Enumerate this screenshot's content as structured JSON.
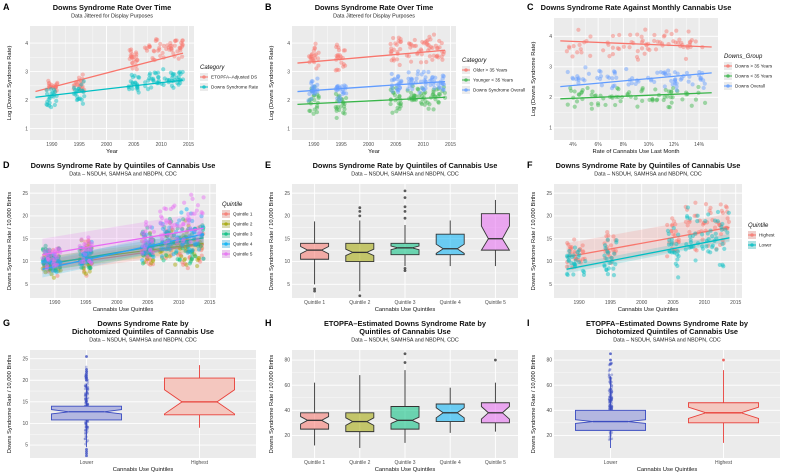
{
  "colors": {
    "panel_bg": "#ebebeb",
    "grid": "#ffffff",
    "red": "#f8766d",
    "teal": "#00bfc4",
    "green": "#7cae00",
    "green2": "#39b54a",
    "blue": "#619cff",
    "purple": "#c77cff",
    "q1": "#f8766d",
    "q2": "#a3a500",
    "q3": "#00bf7d",
    "q4": "#00b0f6",
    "q5": "#e76bf3",
    "box_blue_fill": "#b3b7e0",
    "box_blue_line": "#3b4cc0",
    "box_red_fill": "#f4c7bf",
    "box_red_line": "#e8403a"
  },
  "chart_data": [
    {
      "id": "A",
      "type": "scatter",
      "letter": "A",
      "title": "Downs Syndrome Rate Over Time",
      "subtitle": "Data Jittered for Display Purposes",
      "xlabel": "Year",
      "ylabel": "Log (Downs Syndrome Rate)",
      "xlim": [
        1986,
        2016
      ],
      "ylim": [
        0.6,
        4.6
      ],
      "xticks": [
        1990,
        1995,
        2000,
        2005,
        2010,
        2015
      ],
      "yticks": [
        1,
        2,
        3,
        4
      ],
      "legend_title": "Category",
      "series": [
        {
          "name": "ETOPFA–Adjusted DS",
          "color": "red",
          "clusters": [
            [
              1989,
              1991,
              2.2,
              2.8
            ],
            [
              1994,
              1996,
              2.0,
              3.0
            ],
            [
              2004,
              2006,
              3.0,
              4.0
            ],
            [
              2007,
              2014,
              3.3,
              4.3
            ]
          ],
          "line": [
            [
              1987,
              2.3
            ],
            [
              2014,
              3.65
            ]
          ]
        },
        {
          "name": "Downs Syndrome Rate",
          "color": "teal",
          "clusters": [
            [
              1989,
              1991,
              1.7,
              2.6
            ],
            [
              1994,
              1996,
              1.7,
              2.7
            ],
            [
              2004,
              2006,
              2.2,
              3.0
            ],
            [
              2007,
              2014,
              2.3,
              3.1
            ]
          ],
          "line": [
            [
              1987,
              2.1
            ],
            [
              2014,
              2.7
            ]
          ]
        }
      ]
    },
    {
      "id": "B",
      "type": "scatter",
      "letter": "B",
      "title": "Downs Syndrome Rate Over Time",
      "subtitle": "Data Jittered for Display Purposes",
      "xlabel": "Year",
      "ylabel": "Log (Downs Syndrome Rate)",
      "xlim": [
        1986,
        2016
      ],
      "ylim": [
        0.6,
        4.6
      ],
      "xticks": [
        1990,
        1995,
        2000,
        2005,
        2010,
        2015
      ],
      "yticks": [
        1,
        2,
        3,
        4
      ],
      "legend_title": "Category",
      "series": [
        {
          "name": "Older > 35 Years",
          "color": "red",
          "clusters": [
            [
              1989,
              1991,
              3.0,
              4.2
            ],
            [
              1994,
              1996,
              3.0,
              4.1
            ],
            [
              2004,
              2006,
              3.2,
              4.3
            ],
            [
              2007,
              2014,
              3.2,
              4.4
            ]
          ],
          "line": [
            [
              1987,
              3.3
            ],
            [
              2014,
              3.75
            ]
          ]
        },
        {
          "name": "Younger < 35 Years",
          "color": "green2",
          "clusters": [
            [
              1989,
              1991,
              1.2,
              2.6
            ],
            [
              1994,
              1996,
              1.3,
              2.5
            ],
            [
              2004,
              2006,
              1.5,
              2.6
            ],
            [
              2007,
              2014,
              1.6,
              2.6
            ]
          ],
          "line": [
            [
              1987,
              1.85
            ],
            [
              2014,
              2.1
            ]
          ]
        },
        {
          "name": "Downs Syndrome Overall",
          "color": "blue",
          "clusters": [
            [
              1989,
              1991,
              1.9,
              2.8
            ],
            [
              1994,
              1996,
              1.9,
              2.8
            ],
            [
              2004,
              2006,
              2.2,
              3.0
            ],
            [
              2007,
              2014,
              2.2,
              3.1
            ]
          ],
          "line": [
            [
              1987,
              2.3
            ],
            [
              2014,
              2.65
            ]
          ]
        }
      ]
    },
    {
      "id": "C",
      "type": "scatter",
      "letter": "C",
      "title": "Downs Syndrome Rate Against Monthly Cannabis Use",
      "subtitle": "",
      "xlabel": "Rate of Cannabis Use Last Month",
      "ylabel": "Log (Downs Syndrome Rate)",
      "xlim": [
        2.5,
        15.5
      ],
      "ylim": [
        0.6,
        4.6
      ],
      "xticks": [
        4,
        6,
        8,
        10,
        12,
        14
      ],
      "xtick_labels": [
        "4%",
        "6%",
        "8%",
        "10%",
        "12%",
        "14%"
      ],
      "yticks": [
        1,
        2,
        3,
        4
      ],
      "legend_title": "Downs_Group",
      "series": [
        {
          "name": "Downs > 35 Years",
          "color": "red",
          "clusters": [
            [
              3.5,
              14.5,
              3.2,
              4.3
            ]
          ],
          "line": [
            [
              3,
              3.85
            ],
            [
              15,
              3.65
            ]
          ]
        },
        {
          "name": "Downs < 35 Years",
          "color": "green2",
          "clusters": [
            [
              3.5,
              14.5,
              1.6,
              2.4
            ]
          ],
          "line": [
            [
              3,
              1.95
            ],
            [
              15,
              2.15
            ]
          ]
        },
        {
          "name": "Downs Overall",
          "color": "blue",
          "clusters": [
            [
              3.5,
              14.5,
              2.2,
              3.0
            ]
          ],
          "line": [
            [
              3,
              2.35
            ],
            [
              15,
              2.8
            ]
          ]
        }
      ]
    },
    {
      "id": "D",
      "type": "scatter",
      "letter": "D",
      "title": "Downs Syndrome Rate by Quintiles of Cannabis Use",
      "subtitle": "Data – NSDUH, SAMHSA and NBDPN, CDC",
      "xlabel": "Cannabis Use Quintiles",
      "ylabel": "Downs Syndrome Rate / 10,000 Births",
      "xlim": [
        1986,
        2016
      ],
      "ylim": [
        2,
        27
      ],
      "xticks": [
        1990,
        1995,
        2000,
        2005,
        2010,
        2015
      ],
      "yticks": [
        5,
        10,
        15,
        20,
        25
      ],
      "legend_title": "Quintile",
      "series": [
        {
          "name": "Quintile 1",
          "color": "q1",
          "clusters": [
            [
              1988,
              1991,
              6,
              14
            ],
            [
              1994,
              1996,
              6,
              15
            ],
            [
              2004,
              2006,
              7,
              16
            ],
            [
              2007,
              2014,
              8,
              18
            ]
          ],
          "line": [
            [
              1988,
              8.8
            ],
            [
              2014,
              13.8
            ]
          ],
          "band": 1.5
        },
        {
          "name": "Quintile 2",
          "color": "q2",
          "clusters": [
            [
              1988,
              1991,
              6,
              13
            ],
            [
              1994,
              1996,
              6,
              16
            ],
            [
              2004,
              2006,
              8,
              17
            ],
            [
              2007,
              2014,
              8,
              20
            ]
          ],
          "line": [
            [
              1988,
              9.5
            ],
            [
              2014,
              14.0
            ]
          ],
          "band": 1.5
        },
        {
          "name": "Quintile 3",
          "color": "q3",
          "clusters": [
            [
              1988,
              1991,
              7,
              14
            ],
            [
              1994,
              1996,
              7,
              15
            ],
            [
              2004,
              2006,
              9,
              18
            ],
            [
              2007,
              2014,
              9,
              20
            ]
          ],
          "line": [
            [
              1988,
              9.2
            ],
            [
              2014,
              15.2
            ]
          ],
          "band": 1.5
        },
        {
          "name": "Quintile 4",
          "color": "q4",
          "clusters": [
            [
              1988,
              1991,
              7,
              13
            ],
            [
              1994,
              1996,
              8,
              15
            ],
            [
              2004,
              2006,
              9,
              18
            ],
            [
              2007,
              2014,
              10,
              22
            ]
          ],
          "line": [
            [
              1988,
              8.3
            ],
            [
              2014,
              16.0
            ]
          ],
          "band": 1.8
        },
        {
          "name": "Quintile 5",
          "color": "q5",
          "clusters": [
            [
              1988,
              1991,
              8,
              14
            ],
            [
              1994,
              1996,
              9,
              16
            ],
            [
              2004,
              2006,
              10,
              20
            ],
            [
              2007,
              2014,
              11,
              26
            ]
          ],
          "line": [
            [
              1988,
              11.5
            ],
            [
              2014,
              17.3
            ]
          ],
          "band": 3.5
        }
      ]
    },
    {
      "id": "E",
      "type": "boxplot",
      "letter": "E",
      "title": "Downs Syndrome Rate by Quintiles of Cannabis Use",
      "subtitle": "Data – NSDUH, SAMHSA and NBDPN, CDC",
      "xlabel": "Cannabis Use Quintiles",
      "ylabel": "Downs Syndrome Rate / 10,000 Births",
      "ylim": [
        2,
        27
      ],
      "yticks": [
        5,
        10,
        15,
        20,
        25
      ],
      "categories": [
        "Quintile 1",
        "Quintile 2",
        "Quintile 3",
        "Quintile 4",
        "Quintile 5"
      ],
      "boxes": [
        {
          "color": "q1",
          "q1": 10.5,
          "median": 12.5,
          "q3": 14.0,
          "lo": 5.0,
          "hi": 18.8,
          "notch": 0.8,
          "outliers": [
            4.0,
            3.5
          ]
        },
        {
          "color": "q2",
          "q1": 10.0,
          "median": 12.0,
          "q3": 14.0,
          "lo": 3.5,
          "hi": 19.0,
          "notch": 0.7,
          "outliers": [
            21.8,
            21.0,
            20.0,
            2.5
          ]
        },
        {
          "color": "q3",
          "q1": 11.5,
          "median": 13.0,
          "q3": 14.0,
          "lo": 9.0,
          "hi": 18.0,
          "notch": 0.4,
          "outliers": [
            25.5,
            24.0,
            22.0,
            21.0,
            19.5,
            8.5,
            8.0
          ]
        },
        {
          "color": "q4",
          "q1": 11.5,
          "median": 12.8,
          "q3": 16.0,
          "lo": 9.0,
          "hi": 19.0,
          "notch": 1.0,
          "outliers": []
        },
        {
          "color": "q5",
          "q1": 12.5,
          "median": 15.0,
          "q3": 20.5,
          "lo": 9.0,
          "hi": 23.5,
          "notch": 2.8,
          "outliers": []
        }
      ]
    },
    {
      "id": "F",
      "type": "scatter",
      "letter": "F",
      "title": "Downs Syndrome Rate by Quintiles of Cannabis Use",
      "subtitle": "Data – NSDUH, SAMHSA and NBDPN, CDC",
      "xlabel": "Cannabis Use Quintiles",
      "ylabel": "Downs Syndrome Rate / 10,000 Births",
      "xlim": [
        1986,
        2016
      ],
      "ylim": [
        2,
        27
      ],
      "xticks": [
        1990,
        1995,
        2000,
        2005,
        2010,
        2015
      ],
      "yticks": [
        5,
        10,
        15,
        20,
        25
      ],
      "legend_title": "Quintile",
      "series": [
        {
          "name": "Highest",
          "color": "red",
          "clusters": [
            [
              1988,
              1991,
              8,
              16
            ],
            [
              1994,
              1996,
              9,
              17
            ],
            [
              2004,
              2006,
              10,
              21
            ],
            [
              2007,
              2014,
              11,
              26
            ]
          ],
          "line": [
            [
              1988,
              11.0
            ],
            [
              2014,
              17.5
            ]
          ],
          "band": 3.0
        },
        {
          "name": "Lower",
          "color": "teal",
          "clusters": [
            [
              1988,
              1991,
              5,
              14
            ],
            [
              1994,
              1996,
              5,
              16
            ],
            [
              2004,
              2006,
              6,
              18
            ],
            [
              2007,
              2014,
              7,
              24
            ]
          ],
          "line": [
            [
              1988,
              8.3
            ],
            [
              2014,
              15.2
            ]
          ],
          "band": 0.9
        }
      ]
    },
    {
      "id": "G",
      "type": "boxplot",
      "letter": "G",
      "title": "Downs Syndrome Rate by",
      "title2": "Dichotomized Quintiles of Cannabis Use",
      "subtitle": "Data – NSDUH, SAMHSA and NBDPN, CDC",
      "xlabel": "Cannabis Use Quintiles",
      "ylabel": "Downs Syndrome Rate / 10,000 Births",
      "ylim": [
        2,
        27
      ],
      "yticks": [
        5,
        10,
        15,
        20,
        25
      ],
      "categories": [
        "Lower",
        "Highest"
      ],
      "boxes": [
        {
          "color": "box_blue",
          "q1": 10.8,
          "median": 12.7,
          "q3": 14.0,
          "lo": 4.5,
          "hi": 19.2,
          "notch": 0.5,
          "outliers": [
            25.5,
            22.5,
            22.0,
            21.5,
            21.0,
            20.5,
            20.0,
            4.0,
            3.5,
            3.0,
            2.5
          ],
          "jitter": [
            2.5,
            25.5
          ]
        },
        {
          "color": "box_red",
          "q1": 12.0,
          "median": 15.0,
          "q3": 20.5,
          "lo": 9.0,
          "hi": 23.5,
          "notch": 2.8,
          "outliers": [],
          "jitter": null
        }
      ]
    },
    {
      "id": "H",
      "type": "boxplot",
      "letter": "H",
      "title": "ETOPFA–Estimated Downs Syndrome Rate by",
      "title2": "Quintiles of Cannabis Use",
      "subtitle": "Data – NSDUH, SAMHSA and NBDPN, CDC",
      "xlabel": "Cannabis Use Quintiles",
      "ylabel": "Downs Syndrome Rate / 10,000 Births",
      "ylim": [
        2,
        88
      ],
      "yticks": [
        20,
        40,
        60,
        80
      ],
      "categories": [
        "Quintile 1",
        "Quintile 2",
        "Quintile 3",
        "Quintile 4",
        "Quintile 5"
      ],
      "boxes": [
        {
          "color": "q1",
          "q1": 25.0,
          "median": 32.0,
          "q3": 38.0,
          "lo": 12.0,
          "hi": 62.0,
          "notch": 3.0,
          "outliers": []
        },
        {
          "color": "q2",
          "q1": 23.0,
          "median": 31.0,
          "q3": 38.0,
          "lo": 10.0,
          "hi": 68.0,
          "notch": 3.0,
          "outliers": []
        },
        {
          "color": "q3",
          "q1": 25.0,
          "median": 32.0,
          "q3": 43.0,
          "lo": 14.0,
          "hi": 72.0,
          "notch": 2.5,
          "outliers": [
            85.0,
            78.0
          ]
        },
        {
          "color": "q4",
          "q1": 31.0,
          "median": 38.0,
          "q3": 45.0,
          "lo": 22.0,
          "hi": 58.0,
          "notch": 4.0,
          "outliers": []
        },
        {
          "color": "q5",
          "q1": 30.0,
          "median": 38.0,
          "q3": 46.0,
          "lo": 23.0,
          "hi": 62.0,
          "notch": 5.0,
          "outliers": [
            80.0
          ]
        }
      ]
    },
    {
      "id": "I",
      "type": "boxplot",
      "letter": "I",
      "title": "ETOPFA–Estimated Downs Syndrome Rate by",
      "title2": "Dichotomized Quintiles of Cannabis Use",
      "subtitle": "Data – NSDUH, SAMHSA and NBDPN, CDC",
      "xlabel": "Cannabis Use Quintiles",
      "ylabel": "Downs Syndrome Rate / 10,000 Births",
      "ylim": [
        2,
        88
      ],
      "yticks": [
        20,
        40,
        60,
        80
      ],
      "categories": [
        "Lower",
        "Highest"
      ],
      "boxes": [
        {
          "color": "box_blue",
          "q1": 24.0,
          "median": 31.0,
          "q3": 40.0,
          "lo": 10.0,
          "hi": 67.0,
          "notch": 1.5,
          "outliers": [
            85.0,
            80.0,
            77.0
          ],
          "jitter": [
            8,
            85
          ]
        },
        {
          "color": "box_red",
          "q1": 30.0,
          "median": 38.0,
          "q3": 46.0,
          "lo": 14.0,
          "hi": 72.0,
          "notch": 4.5,
          "outliers": [
            80.0
          ],
          "jitter": null
        }
      ]
    }
  ]
}
